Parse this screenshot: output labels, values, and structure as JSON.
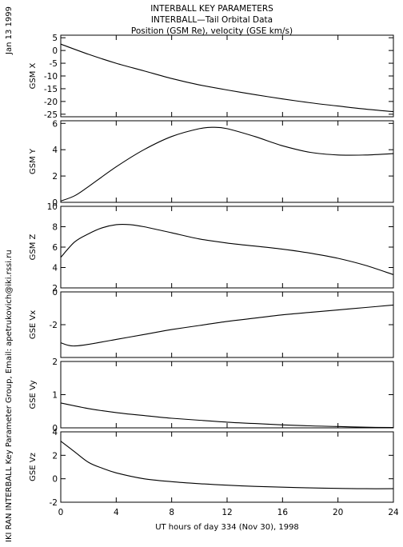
{
  "page": {
    "title_lines": [
      "INTERBALL KEY PARAMETERS",
      "INTERBALL—Tail Orbital Data",
      "Position (GSM Re), velocity (GSE km/s)"
    ],
    "date_label": "Jan 13 1999",
    "credit": "IKI RAN INTERBALL Key Parameter Group, Email: apetrukovich@iki.rssi.ru",
    "xlabel": "UT hours of day 334 (Nov 30), 1998"
  },
  "colors": {
    "background": "#ffffff",
    "axes": "#000000",
    "line": "#000000"
  },
  "chart_data": [
    {
      "type": "line",
      "ylabel": "GSM X",
      "ylim": [
        -26,
        6
      ],
      "yticks": [
        5,
        0,
        -5,
        -10,
        -15,
        -20,
        -25
      ],
      "xlim": [
        0,
        24
      ],
      "x": [
        0,
        2,
        4,
        6,
        8,
        10,
        12,
        14,
        16,
        18,
        20,
        22,
        24
      ],
      "y": [
        2.5,
        -1.5,
        -5.0,
        -8.0,
        -11.0,
        -13.5,
        -15.5,
        -17.3,
        -19.0,
        -20.5,
        -21.8,
        -23.0,
        -24.0
      ]
    },
    {
      "type": "line",
      "ylabel": "GSM Y",
      "ylim": [
        0,
        6.2
      ],
      "yticks": [
        0,
        2,
        4,
        6
      ],
      "xlim": [
        0,
        24
      ],
      "x": [
        0,
        1,
        2,
        4,
        6,
        8,
        10,
        11,
        12,
        14,
        16,
        18,
        20,
        22,
        24
      ],
      "y": [
        0.1,
        0.5,
        1.2,
        2.7,
        4.0,
        5.0,
        5.6,
        5.7,
        5.6,
        5.0,
        4.3,
        3.8,
        3.6,
        3.6,
        3.7
      ]
    },
    {
      "type": "line",
      "ylabel": "GSM Z",
      "ylim": [
        2,
        10
      ],
      "yticks": [
        2,
        4,
        6,
        8,
        10
      ],
      "xlim": [
        0,
        24
      ],
      "x": [
        0,
        1,
        2,
        3,
        4,
        5,
        6,
        8,
        10,
        12,
        14,
        16,
        18,
        20,
        22,
        24
      ],
      "y": [
        5.0,
        6.5,
        7.3,
        7.9,
        8.2,
        8.2,
        8.0,
        7.4,
        6.8,
        6.4,
        6.1,
        5.8,
        5.4,
        4.9,
        4.2,
        3.3
      ]
    },
    {
      "type": "line",
      "ylabel": "GSE Vx",
      "ylim": [
        -4,
        0
      ],
      "yticks": [
        0,
        -2
      ],
      "xlim": [
        0,
        24
      ],
      "x": [
        0,
        0.5,
        1,
        2,
        4,
        6,
        8,
        10,
        12,
        14,
        16,
        18,
        20,
        22,
        24
      ],
      "y": [
        -3.1,
        -3.25,
        -3.3,
        -3.2,
        -2.9,
        -2.6,
        -2.3,
        -2.05,
        -1.8,
        -1.6,
        -1.4,
        -1.25,
        -1.1,
        -0.95,
        -0.8
      ]
    },
    {
      "type": "line",
      "ylabel": "GSE Vy",
      "ylim": [
        0,
        2
      ],
      "yticks": [
        0,
        1,
        2
      ],
      "xlim": [
        0,
        24
      ],
      "x": [
        0,
        2,
        4,
        6,
        8,
        10,
        12,
        14,
        16,
        18,
        20,
        22,
        24
      ],
      "y": [
        0.75,
        0.58,
        0.46,
        0.37,
        0.29,
        0.23,
        0.17,
        0.13,
        0.09,
        0.06,
        0.04,
        0.02,
        0.01
      ]
    },
    {
      "type": "line",
      "ylabel": "GSE Vz",
      "ylim": [
        -2,
        4
      ],
      "yticks": [
        4,
        2,
        0,
        -2
      ],
      "xlim": [
        0,
        24
      ],
      "x": [
        0,
        1,
        2,
        3,
        4,
        6,
        8,
        10,
        12,
        14,
        16,
        18,
        20,
        22,
        24
      ],
      "y": [
        3.2,
        2.3,
        1.4,
        0.9,
        0.5,
        0.0,
        -0.25,
        -0.42,
        -0.55,
        -0.65,
        -0.72,
        -0.78,
        -0.82,
        -0.85,
        -0.85
      ]
    }
  ],
  "xticks": [
    0,
    4,
    8,
    12,
    16,
    20,
    24
  ]
}
